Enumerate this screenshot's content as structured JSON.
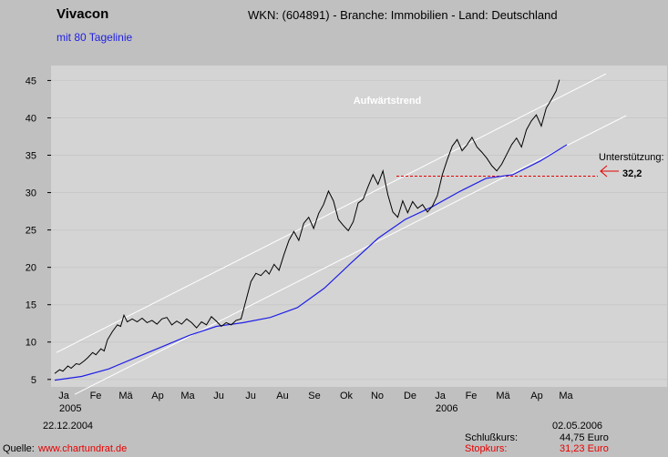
{
  "header": {
    "title": "Vivacon",
    "subtitle": "mit 80 Tagelinie",
    "info": "WKN: (604891) - Branche: Immobilien - Land: Deutschland"
  },
  "footer": {
    "start_date": "22.12.2004",
    "end_date": "02.05.2006",
    "year_2005": "2005",
    "year_2006": "2006",
    "source_label": "Quelle:",
    "source_url": "www.chartundrat.de",
    "close_label": "Schlußkurs:",
    "close_value": "44,75 Euro",
    "stop_label": "Stopkurs:",
    "stop_value": "31,23 Euro"
  },
  "colors": {
    "background": "#c0c0c0",
    "plot_background": "#d4d4d4",
    "price_line": "#000000",
    "moving_average": "#1e1ee6",
    "trend_lines": "#ffffff",
    "support": "#e60000"
  },
  "chart_data": {
    "type": "line",
    "x_axis": "time",
    "ylim": [
      4,
      47
    ],
    "y_ticks": [
      5,
      10,
      15,
      20,
      25,
      30,
      35,
      40,
      45
    ],
    "x_ticks": [
      "Ja",
      "Fe",
      "Mä",
      "Ap",
      "Ma",
      "Ju",
      "Ju",
      "Au",
      "Se",
      "Ok",
      "No",
      "De",
      "Ja",
      "Fe",
      "Mä",
      "Ap",
      "Ma"
    ],
    "annotations": {
      "trend_label": "Aufwärtstrend",
      "support_label": "Unterstützung:",
      "support_value_label": "32,2",
      "support_value": 32.2
    },
    "series": [
      {
        "name": "Kurs",
        "points": [
          [
            0,
            5.8
          ],
          [
            0.3,
            6.3
          ],
          [
            0.5,
            6.1
          ],
          [
            0.8,
            6.8
          ],
          [
            1,
            6.5
          ],
          [
            1.3,
            7.1
          ],
          [
            1.5,
            7
          ],
          [
            1.8,
            7.5
          ],
          [
            2,
            7.9
          ],
          [
            2.3,
            8.6
          ],
          [
            2.5,
            8.3
          ],
          [
            2.8,
            9.1
          ],
          [
            3,
            8.8
          ],
          [
            3.2,
            10.3
          ],
          [
            3.5,
            11.4
          ],
          [
            3.8,
            12.3
          ],
          [
            4,
            12.1
          ],
          [
            4.2,
            13.6
          ],
          [
            4.4,
            12.7
          ],
          [
            4.7,
            13.1
          ],
          [
            5,
            12.7
          ],
          [
            5.3,
            13.2
          ],
          [
            5.6,
            12.6
          ],
          [
            5.9,
            12.9
          ],
          [
            6.2,
            12.4
          ],
          [
            6.5,
            13.1
          ],
          [
            6.8,
            13.3
          ],
          [
            7.1,
            12.3
          ],
          [
            7.4,
            12.8
          ],
          [
            7.7,
            12.4
          ],
          [
            8,
            13.1
          ],
          [
            8.3,
            12.6
          ],
          [
            8.6,
            11.9
          ],
          [
            8.9,
            12.7
          ],
          [
            9.2,
            12.3
          ],
          [
            9.5,
            13.4
          ],
          [
            9.8,
            12.8
          ],
          [
            10.1,
            12.1
          ],
          [
            10.4,
            12.6
          ],
          [
            10.7,
            12.3
          ],
          [
            11,
            12.9
          ],
          [
            11.3,
            13.1
          ],
          [
            11.6,
            15.6
          ],
          [
            11.9,
            18.1
          ],
          [
            12.2,
            19.2
          ],
          [
            12.5,
            18.9
          ],
          [
            12.8,
            19.6
          ],
          [
            13,
            19.1
          ],
          [
            13.3,
            20.4
          ],
          [
            13.6,
            19.6
          ],
          [
            13.9,
            21.7
          ],
          [
            14.2,
            23.6
          ],
          [
            14.5,
            24.8
          ],
          [
            14.8,
            23.6
          ],
          [
            15.1,
            25.9
          ],
          [
            15.4,
            26.7
          ],
          [
            15.7,
            25.2
          ],
          [
            16,
            27.2
          ],
          [
            16.3,
            28.4
          ],
          [
            16.6,
            30.2
          ],
          [
            16.9,
            28.9
          ],
          [
            17.2,
            26.4
          ],
          [
            17.5,
            25.6
          ],
          [
            17.8,
            24.9
          ],
          [
            18.1,
            26.1
          ],
          [
            18.4,
            28.6
          ],
          [
            18.7,
            29.1
          ],
          [
            19,
            30.8
          ],
          [
            19.3,
            32.4
          ],
          [
            19.6,
            31.1
          ],
          [
            19.9,
            32.9
          ],
          [
            20.2,
            29.7
          ],
          [
            20.5,
            27.4
          ],
          [
            20.8,
            26.7
          ],
          [
            21.1,
            28.9
          ],
          [
            21.4,
            27.3
          ],
          [
            21.7,
            28.8
          ],
          [
            22,
            27.9
          ],
          [
            22.3,
            28.4
          ],
          [
            22.6,
            27.4
          ],
          [
            22.9,
            28.2
          ],
          [
            23.2,
            29.6
          ],
          [
            23.5,
            32.4
          ],
          [
            23.8,
            34.4
          ],
          [
            24.1,
            36.2
          ],
          [
            24.4,
            37.1
          ],
          [
            24.7,
            35.6
          ],
          [
            25,
            36.4
          ],
          [
            25.3,
            37.4
          ],
          [
            25.6,
            36.1
          ],
          [
            25.9,
            35.4
          ],
          [
            26.2,
            34.6
          ],
          [
            26.5,
            33.6
          ],
          [
            26.8,
            32.9
          ],
          [
            27.1,
            33.8
          ],
          [
            27.4,
            35.1
          ],
          [
            27.7,
            36.4
          ],
          [
            28,
            37.3
          ],
          [
            28.3,
            36.1
          ],
          [
            28.6,
            38.4
          ],
          [
            28.9,
            39.6
          ],
          [
            29.2,
            40.4
          ],
          [
            29.5,
            38.9
          ],
          [
            29.8,
            41.3
          ],
          [
            30.1,
            42.4
          ],
          [
            30.4,
            43.6
          ],
          [
            30.6,
            45.1
          ]
        ]
      },
      {
        "name": "80 Tagelinie",
        "points": [
          [
            0,
            4.9
          ],
          [
            2,
            5.4
          ],
          [
            4,
            6.4
          ],
          [
            6,
            7.9
          ],
          [
            8,
            9.4
          ],
          [
            10,
            10.9
          ],
          [
            12,
            12.1
          ],
          [
            14,
            12.6
          ],
          [
            16,
            13.3
          ],
          [
            18,
            14.6
          ],
          [
            20,
            17.2
          ],
          [
            22,
            20.6
          ],
          [
            24,
            23.9
          ],
          [
            26,
            26.4
          ],
          [
            28,
            28.1
          ],
          [
            30,
            30.1
          ],
          [
            32,
            31.9
          ],
          [
            34,
            32.4
          ],
          [
            36,
            34.2
          ],
          [
            38,
            36.4
          ]
        ]
      }
    ]
  }
}
